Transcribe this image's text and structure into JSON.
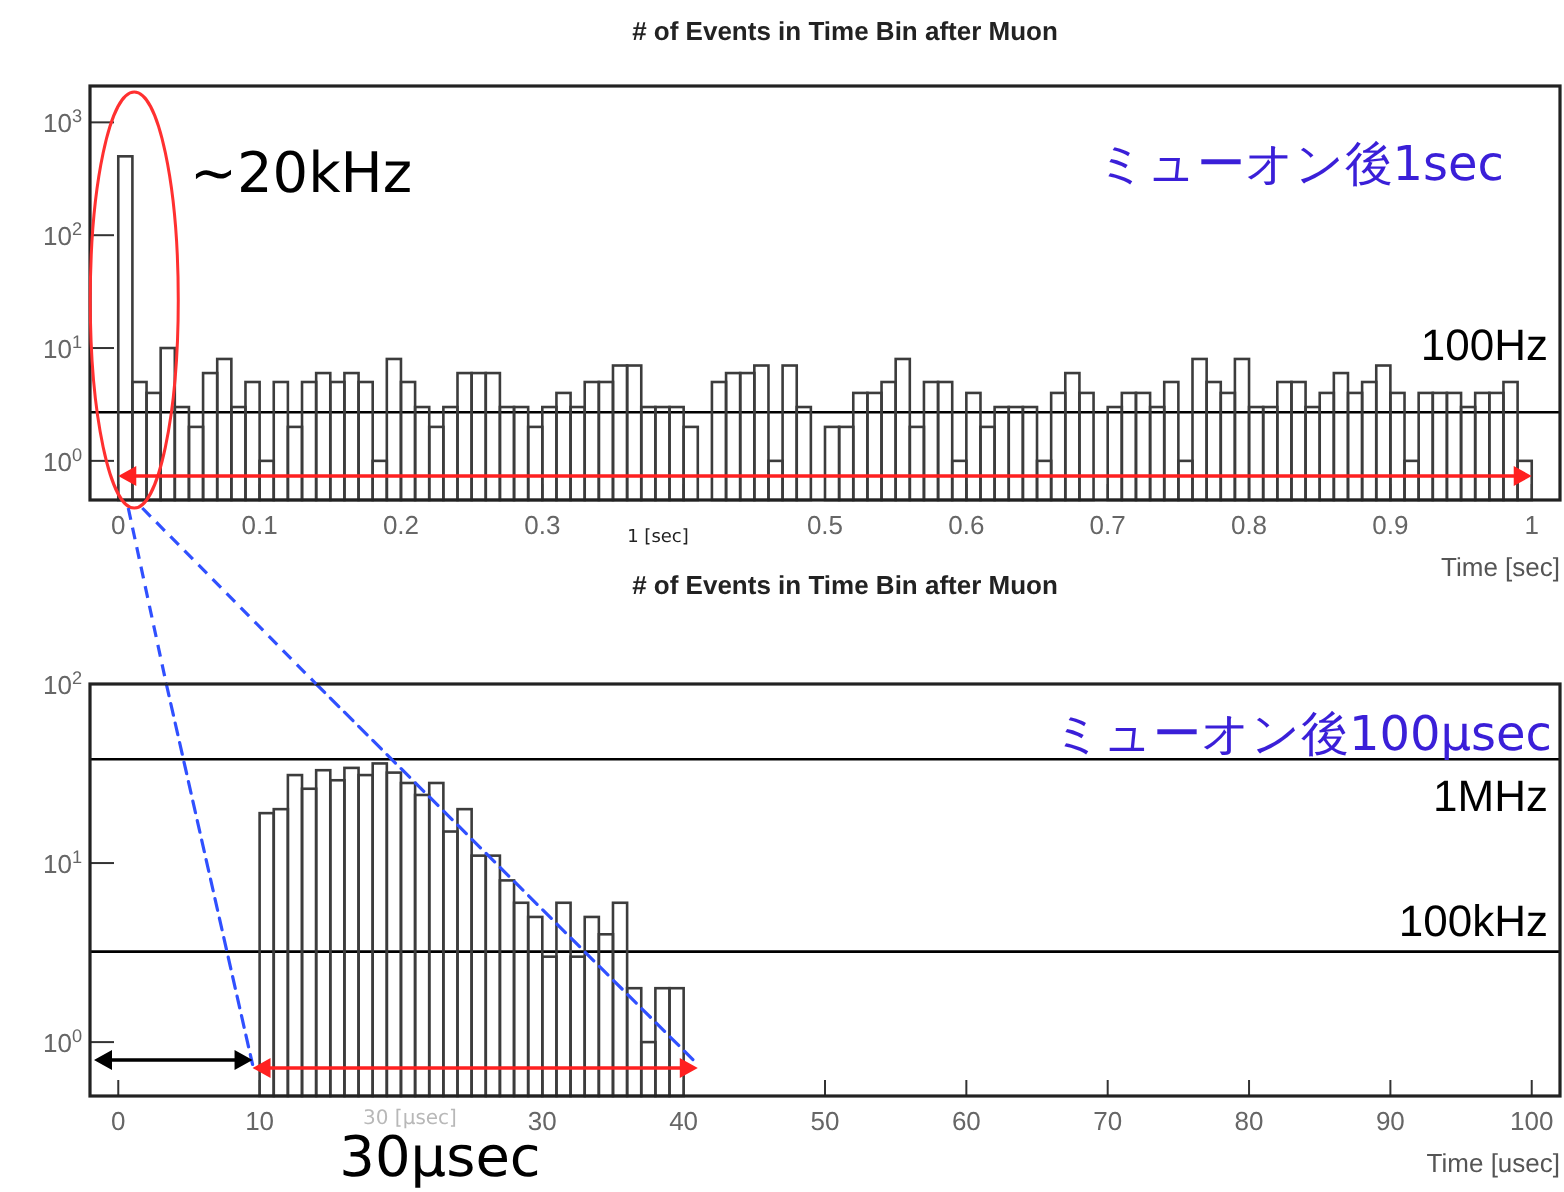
{
  "chart_data": [
    {
      "type": "histogram",
      "title": "# of Events in Time Bin after Muon",
      "xlabel": "Time [sec]",
      "color": "#3c3c3c",
      "log": "y",
      "bins": [
        0,
        0.01,
        0.02,
        0.03,
        0.04,
        0.05,
        0.06,
        0.07,
        0.08,
        0.09,
        0.1,
        0.11,
        0.12,
        0.13,
        0.14,
        0.15,
        0.16,
        0.17,
        0.18,
        0.19,
        0.2,
        0.21,
        0.22,
        0.23,
        0.24,
        0.25,
        0.26,
        0.27,
        0.28,
        0.29,
        0.3,
        0.31,
        0.32,
        0.33,
        0.34,
        0.35,
        0.36,
        0.37,
        0.38,
        0.39,
        0.4,
        0.41,
        0.42,
        0.43,
        0.44,
        0.45,
        0.46,
        0.47,
        0.48,
        0.49,
        0.5,
        0.51,
        0.52,
        0.53,
        0.54,
        0.55,
        0.56,
        0.57,
        0.58,
        0.59,
        0.6,
        0.61,
        0.62,
        0.63,
        0.64,
        0.65,
        0.66,
        0.67,
        0.68,
        0.69,
        0.7,
        0.71,
        0.72,
        0.73,
        0.74,
        0.75,
        0.76,
        0.77,
        0.78,
        0.79,
        0.8,
        0.81,
        0.82,
        0.83,
        0.84,
        0.85,
        0.86,
        0.87,
        0.88,
        0.89,
        0.9,
        0.91,
        0.92,
        0.93,
        0.94,
        0.95,
        0.96,
        0.97,
        0.98,
        0.99,
        1
      ],
      "values": [
        500,
        5,
        4,
        10,
        3,
        2,
        6,
        8,
        3,
        5,
        1,
        5,
        2,
        5,
        6,
        5,
        6,
        5,
        1,
        8,
        5,
        3,
        2,
        3,
        6,
        6,
        6,
        3,
        3,
        2,
        3,
        4,
        3,
        5,
        5,
        7,
        7,
        3,
        3,
        3,
        2,
        null,
        5,
        6,
        6,
        7,
        1,
        7,
        3,
        null,
        2,
        2,
        4,
        4,
        5,
        8,
        2,
        5,
        5,
        1,
        4,
        2,
        3,
        3,
        3,
        1,
        4,
        6,
        4,
        null,
        3,
        4,
        4,
        3,
        5,
        1,
        8,
        5,
        4,
        8,
        3,
        3,
        5,
        5,
        3,
        4,
        6,
        4,
        5,
        7,
        4,
        1,
        4,
        4,
        4,
        3,
        4,
        4,
        5,
        1
      ],
      "xlim": [
        -0.02,
        1.02
      ],
      "ylim": [
        0.45,
        2100
      ],
      "xticks": [
        0,
        0.1,
        0.2,
        0.3,
        {
          "value": 0.4,
          "label": null
        },
        0.5,
        0.6,
        0.7,
        0.8,
        0.9,
        1
      ],
      "yticks": [
        {
          "value": 1,
          "label": "10$^{0}$"
        },
        {
          "value": 10,
          "label": "10$^{1}$"
        },
        {
          "value": 100,
          "label": "10$^{2}$"
        },
        {
          "value": 1000,
          "label": "10$^{3}$"
        }
      ],
      "ref_lines": [
        {
          "axis": "y",
          "value": 2.7,
          "label": "100Hz",
          "color": "#000000"
        }
      ],
      "annotations": [
        "~20kHz",
        "ミューオン後1sec",
        "1 [sec]"
      ]
    },
    {
      "type": "histogram",
      "title": "# of Events in Time Bin after Muon",
      "xlabel": "Time [usec]",
      "color": "#3c3c3c",
      "log": "y",
      "bins": [
        10,
        11,
        12,
        13,
        14,
        15,
        16,
        17,
        18,
        19,
        20,
        21,
        22,
        23,
        24,
        25,
        26,
        27,
        28,
        29,
        30,
        31,
        32,
        33,
        34,
        35,
        36,
        37,
        38,
        39,
        40
      ],
      "values": [
        19,
        20,
        31,
        26,
        33,
        29,
        34,
        31,
        36,
        32,
        28,
        24,
        28,
        15,
        20,
        11,
        11,
        8,
        6,
        5,
        3,
        6,
        3,
        5,
        4,
        6,
        2,
        1,
        2,
        2
      ],
      "xlim": [
        -2,
        102
      ],
      "ylim": [
        0.5,
        100
      ],
      "xticks": [
        0,
        10,
        {
          "value": 20,
          "label": null
        },
        30,
        40,
        50,
        60,
        70,
        80,
        90,
        100
      ],
      "yticks": [
        {
          "value": 1,
          "label": "10$^{0}$"
        },
        {
          "value": 10,
          "label": "10$^{1}$"
        },
        {
          "value": 100,
          "label": "10$^{2}$"
        }
      ],
      "ref_lines": [
        {
          "axis": "y",
          "value": 38,
          "label": "1MHz",
          "color": "#000000"
        },
        {
          "axis": "y",
          "value": 3.2,
          "label": "100kHz",
          "color": "#000000"
        }
      ],
      "series": [
        {
          "type": "line",
          "x": [
            3.4,
            9.5
          ],
          "values": [
            100,
            0.75
          ],
          "color": "#3050ff",
          "line_style": "dashed"
        },
        {
          "type": "line",
          "x": [
            14,
            41
          ],
          "values": [
            100,
            0.75
          ],
          "color": "#3050ff",
          "line_style": "dashed"
        }
      ],
      "annotations": [
        "ミューオン後100μsec",
        "30 [μsec]",
        "30μsec"
      ]
    }
  ]
}
